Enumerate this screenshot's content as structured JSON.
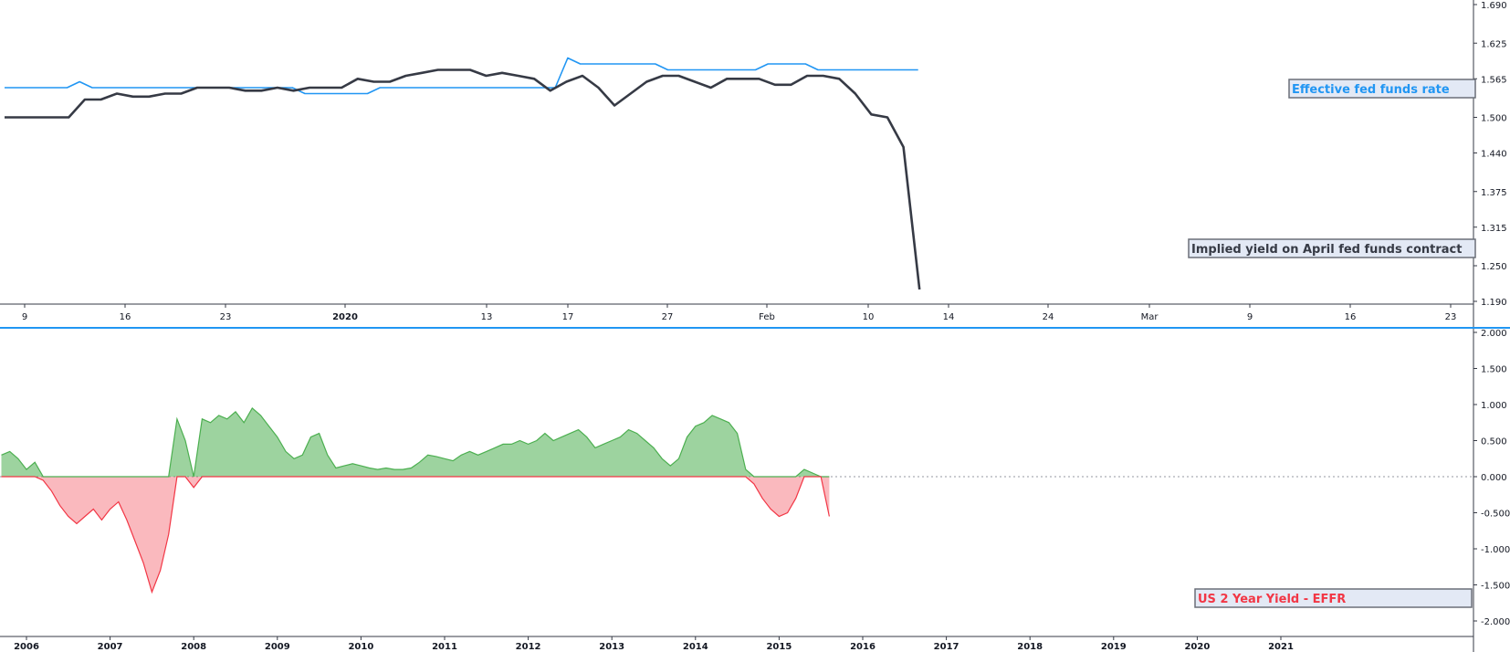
{
  "chart_data": [
    {
      "type": "line",
      "panel": "top",
      "series": [
        {
          "name": "Effective fed funds rate",
          "color": "#2196f3",
          "values": [
            1.55,
            1.55,
            1.55,
            1.55,
            1.55,
            1.55,
            1.56,
            1.55,
            1.55,
            1.55,
            1.55,
            1.55,
            1.55,
            1.55,
            1.55,
            1.55,
            1.55,
            1.55,
            1.55,
            1.55,
            1.55,
            1.55,
            1.55,
            1.55,
            1.54,
            1.54,
            1.54,
            1.54,
            1.54,
            1.54,
            1.55,
            1.55,
            1.55,
            1.55,
            1.55,
            1.55,
            1.55,
            1.55,
            1.55,
            1.55,
            1.55,
            1.55,
            1.55,
            1.55,
            1.55,
            1.6,
            1.59,
            1.59,
            1.59,
            1.59,
            1.59,
            1.59,
            1.59,
            1.58,
            1.58,
            1.58,
            1.58,
            1.58,
            1.58,
            1.58,
            1.58,
            1.59,
            1.59,
            1.59,
            1.59,
            1.58,
            1.58,
            1.58,
            1.58,
            1.58,
            1.58,
            1.58,
            1.58,
            1.58
          ]
        },
        {
          "name": "Implied yield on April fed funds contract",
          "color": "#363a45",
          "values": [
            1.5,
            1.5,
            1.5,
            1.5,
            1.5,
            1.53,
            1.53,
            1.54,
            1.535,
            1.535,
            1.54,
            1.54,
            1.55,
            1.55,
            1.55,
            1.545,
            1.545,
            1.55,
            1.545,
            1.55,
            1.55,
            1.55,
            1.565,
            1.56,
            1.56,
            1.57,
            1.575,
            1.58,
            1.58,
            1.58,
            1.57,
            1.575,
            1.57,
            1.565,
            1.545,
            1.56,
            1.57,
            1.55,
            1.52,
            1.54,
            1.56,
            1.57,
            1.57,
            1.56,
            1.55,
            1.565,
            1.565,
            1.565,
            1.555,
            1.555,
            1.57,
            1.57,
            1.565,
            1.54,
            1.505,
            1.5,
            1.45,
            1.21
          ]
        }
      ],
      "y_ticks": [
        "1.690",
        "1.625",
        "1.565",
        "1.500",
        "1.440",
        "1.375",
        "1.315",
        "1.250",
        "1.190"
      ],
      "x_ticks": [
        "9",
        "16",
        "23",
        "2020",
        "13",
        "17",
        "27",
        "Feb",
        "10",
        "14",
        "24",
        "Mar",
        "9",
        "16",
        "23"
      ],
      "ylim": [
        1.19,
        1.69
      ]
    },
    {
      "type": "area",
      "panel": "bottom",
      "label": "US 2 Year Yield - EFFR",
      "positive_color": "#4caf50",
      "negative_color": "#f23645",
      "x_ticks": [
        "2006",
        "2007",
        "2008",
        "2009",
        "2010",
        "2011",
        "2012",
        "2013",
        "2014",
        "2015",
        "2016",
        "2017",
        "2018",
        "2019",
        "2020",
        "2021"
      ],
      "y_ticks": [
        "2.000",
        "1.500",
        "1.000",
        "0.500",
        "0.000",
        "-0.500",
        "-1.000",
        "-1.500",
        "-2.000"
      ],
      "ylim": [
        -2.0,
        2.0
      ],
      "x_start": 2005.7,
      "x_step": 0.1,
      "values": [
        0.3,
        0.35,
        0.25,
        0.1,
        0.2,
        -0.05,
        -0.2,
        -0.4,
        -0.55,
        -0.65,
        -0.55,
        -0.45,
        -0.6,
        -0.45,
        -0.35,
        -0.6,
        -0.9,
        -1.2,
        -1.6,
        -1.3,
        -0.8,
        0.8,
        0.5,
        -0.15,
        0.8,
        0.75,
        0.85,
        0.8,
        0.9,
        0.75,
        0.95,
        0.85,
        0.7,
        0.55,
        0.35,
        0.25,
        0.3,
        0.55,
        0.6,
        0.3,
        0.12,
        0.15,
        0.18,
        0.15,
        0.12,
        0.1,
        0.12,
        0.1,
        0.1,
        0.12,
        0.2,
        0.3,
        0.28,
        0.25,
        0.22,
        0.3,
        0.35,
        0.3,
        0.35,
        0.4,
        0.45,
        0.45,
        0.5,
        0.45,
        0.5,
        0.6,
        0.5,
        0.55,
        0.6,
        0.65,
        0.55,
        0.4,
        0.45,
        0.5,
        0.55,
        0.65,
        0.6,
        0.5,
        0.4,
        0.25,
        0.15,
        0.25,
        0.55,
        0.7,
        0.75,
        0.85,
        0.8,
        0.75,
        0.6,
        0.1,
        -0.1,
        -0.3,
        -0.45,
        -0.55,
        -0.5,
        -0.3,
        0.1,
        0.05,
        0.0,
        -0.55
      ]
    }
  ]
}
